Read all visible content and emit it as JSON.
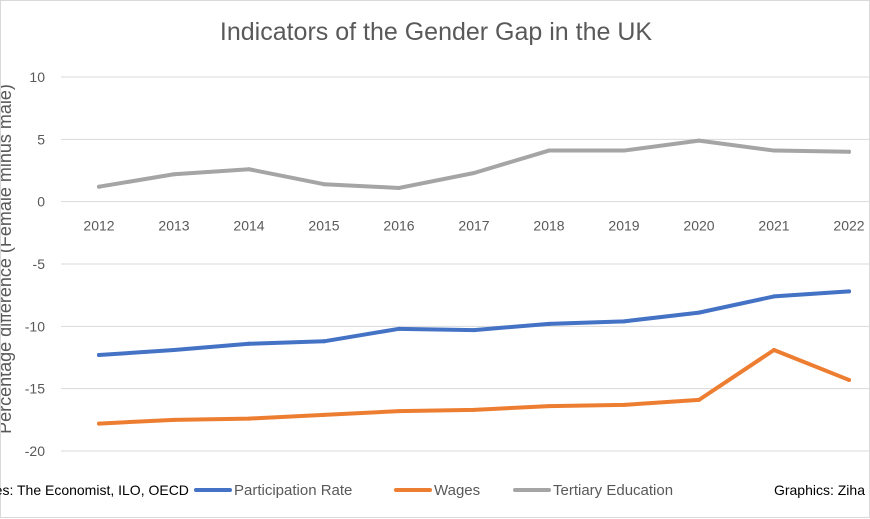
{
  "chart_data": {
    "type": "line",
    "title": "Indicators of the Gender Gap in the UK",
    "xlabel": "",
    "ylabel": "Percentage difference (Female minus male)",
    "categories": [
      "2012",
      "2013",
      "2014",
      "2015",
      "2016",
      "2017",
      "2018",
      "2019",
      "2020",
      "2021",
      "2022"
    ],
    "y_ticks": [
      10,
      5,
      0,
      -5,
      -10,
      -15,
      -20
    ],
    "ylim": [
      -20,
      10
    ],
    "grid": true,
    "legend_position": "bottom",
    "series": [
      {
        "name": "Participation Rate",
        "color": "#4472c4",
        "values": [
          -12.3,
          -11.9,
          -11.4,
          -11.2,
          -10.2,
          -10.3,
          -9.8,
          -9.6,
          -8.9,
          -7.6,
          -7.2
        ]
      },
      {
        "name": "Wages",
        "color": "#ed7d31",
        "values": [
          -17.8,
          -17.5,
          -17.4,
          -17.1,
          -16.8,
          -16.7,
          -16.4,
          -16.3,
          -15.9,
          -11.9,
          -14.3
        ]
      },
      {
        "name": "Tertiary Education",
        "color": "#a5a5a5",
        "values": [
          1.2,
          2.2,
          2.6,
          1.4,
          1.1,
          2.3,
          4.1,
          4.1,
          4.9,
          4.1,
          4.0
        ]
      }
    ]
  },
  "sources_text": "rces: The Economist, ILO, OECD",
  "graphics_credit": "Graphics: Ziha"
}
